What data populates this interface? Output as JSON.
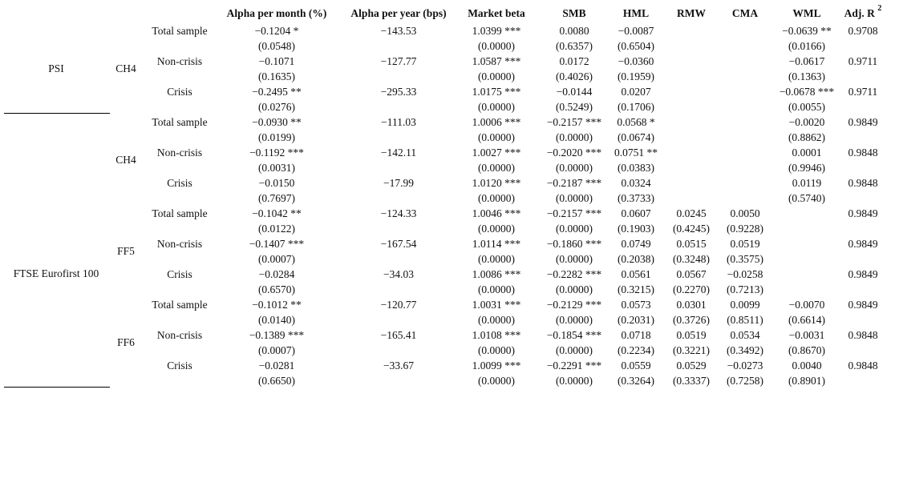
{
  "header": {
    "columns": [
      "Alpha per month (%)",
      "Alpha per year (bps)",
      "Market beta",
      "SMB",
      "HML",
      "RMW",
      "CMA",
      "WML",
      "Adj. R"
    ],
    "superscript": "2"
  },
  "panels": [
    {
      "index": "PSI",
      "models": [
        {
          "model": "CH4",
          "rows": [
            {
              "sample": "Total sample",
              "values": [
                "−0.1204 *",
                "−143.53",
                "1.0399 ***",
                "0.0080",
                "−0.0087",
                null,
                null,
                "−0.0639 **",
                "0.9708"
              ],
              "pvalues": [
                "(0.0548)",
                null,
                "(0.0000)",
                "(0.6357)",
                "(0.6504)",
                null,
                null,
                "(0.0166)",
                null
              ]
            },
            {
              "sample": "Non-crisis",
              "values": [
                "−0.1071",
                "−127.77",
                "1.0587 ***",
                "0.0172",
                "−0.0360",
                null,
                null,
                "−0.0617",
                "0.9711"
              ],
              "pvalues": [
                "(0.1635)",
                null,
                "(0.0000)",
                "(0.4026)",
                "(0.1959)",
                null,
                null,
                "(0.1363)",
                null
              ]
            },
            {
              "sample": "Crisis",
              "values": [
                "−0.2495 **",
                "−295.33",
                "1.0175 ***",
                "−0.0144",
                "0.0207",
                null,
                null,
                "−0.0678 ***",
                "0.9711"
              ],
              "pvalues": [
                "(0.0276)",
                null,
                "(0.0000)",
                "(0.5249)",
                "(0.1706)",
                null,
                null,
                "(0.0055)",
                null
              ]
            }
          ]
        }
      ]
    },
    {
      "index": "FTSE Eurofirst 100",
      "models": [
        {
          "model": "CH4",
          "rows": [
            {
              "sample": "Total sample",
              "values": [
                "−0.0930 **",
                "−111.03",
                "1.0006 ***",
                "−0.2157 ***",
                "0.0568 *",
                null,
                null,
                "−0.0020",
                "0.9849"
              ],
              "pvalues": [
                "(0.0199)",
                null,
                "(0.0000)",
                "(0.0000)",
                "(0.0674)",
                null,
                null,
                "(0.8862)",
                null
              ]
            },
            {
              "sample": "Non-crisis",
              "values": [
                "−0.1192 ***",
                "−142.11",
                "1.0027 ***",
                "−0.2020 ***",
                "0.0751 **",
                null,
                null,
                "0.0001",
                "0.9848"
              ],
              "pvalues": [
                "(0.0031)",
                null,
                "(0.0000)",
                "(0.0000)",
                "(0.0383)",
                null,
                null,
                "(0.9946)",
                null
              ]
            },
            {
              "sample": "Crisis",
              "values": [
                "−0.0150",
                "−17.99",
                "1.0120 ***",
                "−0.2187 ***",
                "0.0324",
                null,
                null,
                "0.0119",
                "0.9848"
              ],
              "pvalues": [
                "(0.7697)",
                null,
                "(0.0000)",
                "(0.0000)",
                "(0.3733)",
                null,
                null,
                "(0.5740)",
                null
              ]
            }
          ]
        },
        {
          "model": "FF5",
          "rows": [
            {
              "sample": "Total sample",
              "values": [
                "−0.1042 **",
                "−124.33",
                "1.0046 ***",
                "−0.2157 ***",
                "0.0607",
                "0.0245",
                "0.0050",
                null,
                "0.9849"
              ],
              "pvalues": [
                "(0.0122)",
                null,
                "(0.0000)",
                "(0.0000)",
                "(0.1903)",
                "(0.4245)",
                "(0.9228)",
                null,
                null
              ]
            },
            {
              "sample": "Non-crisis",
              "values": [
                "−0.1407 ***",
                "−167.54",
                "1.0114 ***",
                "−0.1860 ***",
                "0.0749",
                "0.0515",
                "0.0519",
                null,
                "0.9849"
              ],
              "pvalues": [
                "(0.0007)",
                null,
                "(0.0000)",
                "(0.0000)",
                "(0.2038)",
                "(0.3248)",
                "(0.3575)",
                null,
                null
              ]
            },
            {
              "sample": "Crisis",
              "values": [
                "−0.0284",
                "−34.03",
                "1.0086 ***",
                "−0.2282 ***",
                "0.0561",
                "0.0567",
                "−0.0258",
                null,
                "0.9849"
              ],
              "pvalues": [
                "(0.6570)",
                null,
                "(0.0000)",
                "(0.0000)",
                "(0.3215)",
                "(0.2270)",
                "(0.7213)",
                null,
                null
              ]
            }
          ]
        },
        {
          "model": "FF6",
          "rows": [
            {
              "sample": "Total sample",
              "values": [
                "−0.1012 **",
                "−120.77",
                "1.0031 ***",
                "−0.2129 ***",
                "0.0573",
                "0.0301",
                "0.0099",
                "−0.0070",
                "0.9849"
              ],
              "pvalues": [
                "(0.0140)",
                null,
                "(0.0000)",
                "(0.0000)",
                "(0.2031)",
                "(0.3726)",
                "(0.8511)",
                "(0.6614)",
                null
              ]
            },
            {
              "sample": "Non-crisis",
              "values": [
                "−0.1389 ***",
                "−165.41",
                "1.0108 ***",
                "−0.1854 ***",
                "0.0718",
                "0.0519",
                "0.0534",
                "−0.0031",
                "0.9848"
              ],
              "pvalues": [
                "(0.0007)",
                null,
                "(0.0000)",
                "(0.0000)",
                "(0.2234)",
                "(0.3221)",
                "(0.3492)",
                "(0.8670)",
                null
              ]
            },
            {
              "sample": "Crisis",
              "values": [
                "−0.0281",
                "−33.67",
                "1.0099 ***",
                "−0.2291 ***",
                "0.0559",
                "0.0529",
                "−0.0273",
                "0.0040",
                "0.9848"
              ],
              "pvalues": [
                "(0.6650)",
                null,
                "(0.0000)",
                "(0.0000)",
                "(0.3264)",
                "(0.3337)",
                "(0.7258)",
                "(0.8901)",
                null
              ]
            }
          ]
        }
      ]
    }
  ]
}
